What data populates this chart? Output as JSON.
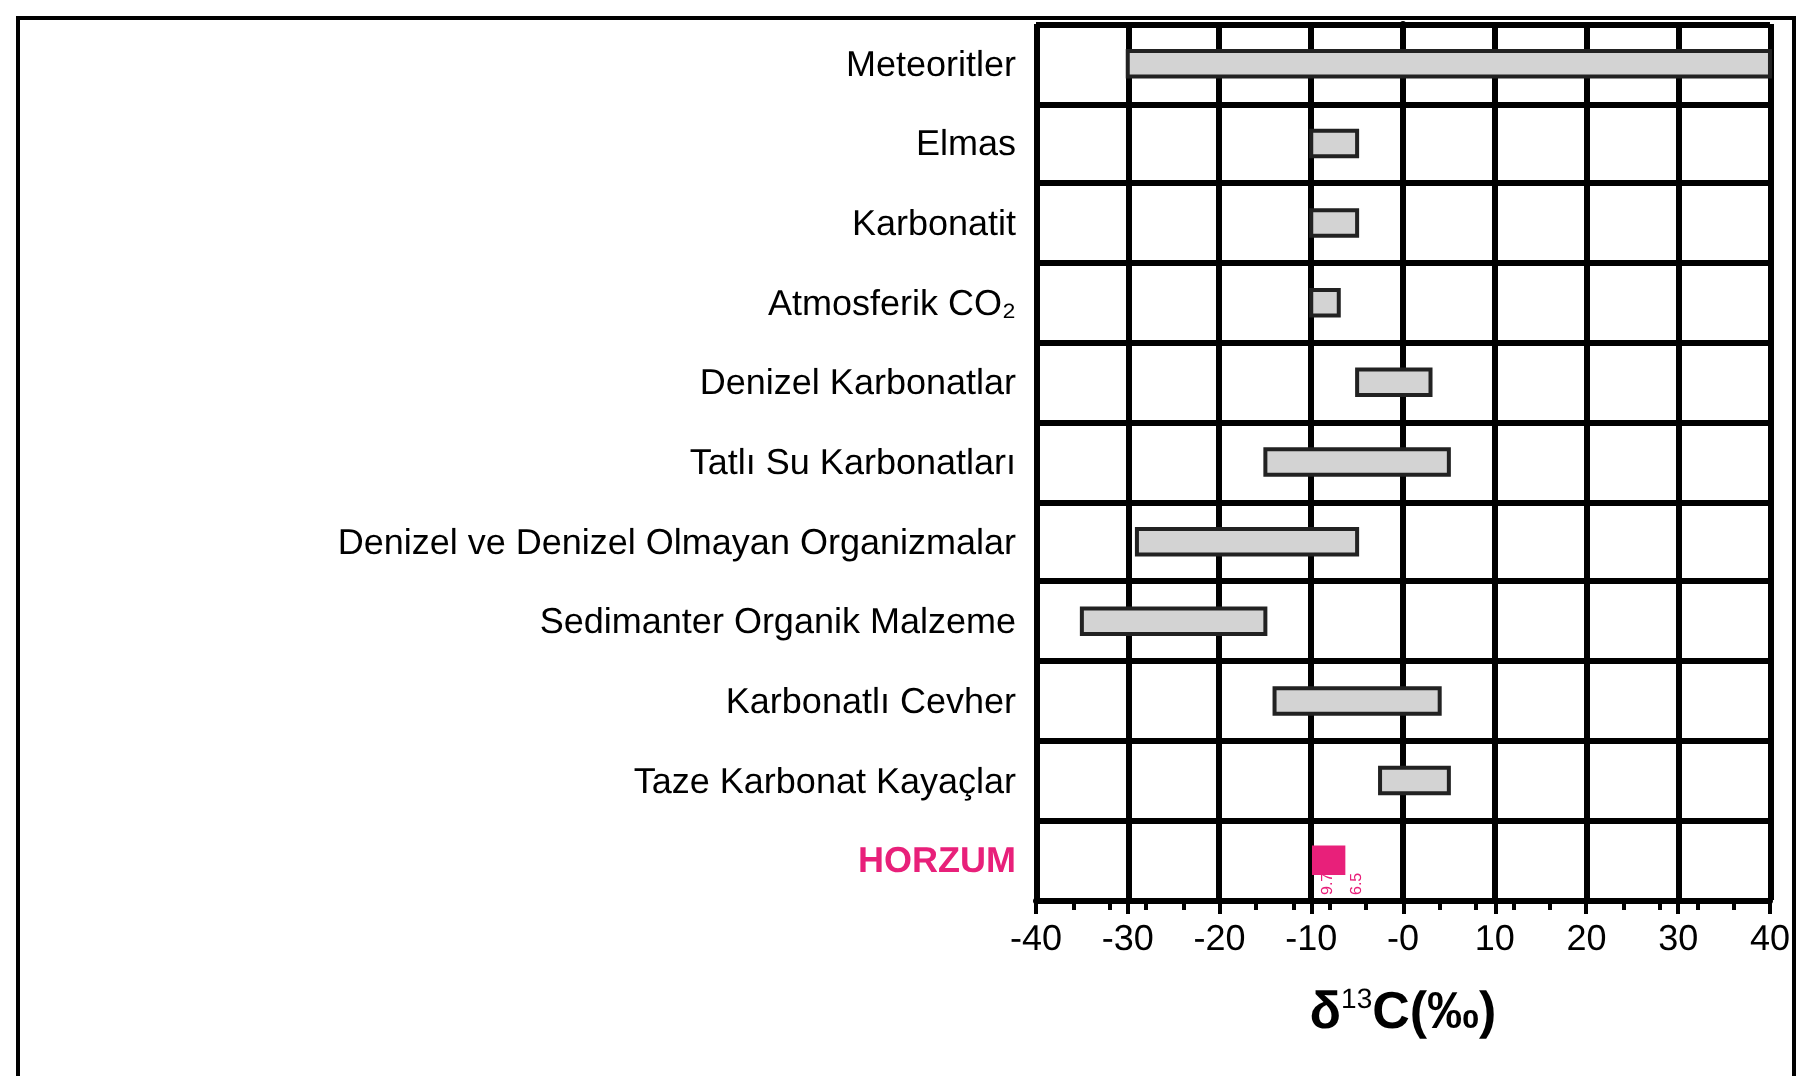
{
  "chart_data": {
    "type": "bar",
    "orientation": "horizontal",
    "xlabel": "δ$^{13}$C(‰)",
    "categories": [
      "Meteoritler",
      "Elmas",
      "Karbonatit",
      "Atmosferik CO₂",
      "Denizel Karbonatlar",
      "Tatlı Su Karbonatları",
      "Denizel ve Denizel Olmayan Organizmalar",
      "Sedimanter Organik Malzeme",
      "Karbonatlı Cevher",
      "Taze Karbonat Kayaçlar",
      "HORZUM"
    ],
    "base": [
      -30,
      -10,
      -10,
      -10,
      -5,
      -15,
      -29,
      -35,
      -14,
      -2.5,
      -9.7
    ],
    "values": [
      70,
      5,
      5,
      3,
      8,
      20,
      24,
      20,
      18,
      7.5,
      3.2
    ],
    "color": "#d3d3d3",
    "colors": [
      "#d3d3d3",
      "#d3d3d3",
      "#d3d3d3",
      "#d3d3d3",
      "#d3d3d3",
      "#d3d3d3",
      "#d3d3d3",
      "#d3d3d3",
      "#d3d3d3",
      "#d3d3d3",
      "#e8207a"
    ],
    "xlim": [
      -40,
      40
    ],
    "xticks": [
      -40,
      -30,
      -20,
      -10,
      {
        "value": 0,
        "label": "-0"
      },
      10,
      20,
      30,
      40
    ],
    "grid": true,
    "annotations": [
      {
        "text": "9.7",
        "x": -9.7,
        "y": "HORZUM"
      },
      {
        "text": "6.5",
        "x": -6.5,
        "y": "HORZUM"
      }
    ]
  }
}
